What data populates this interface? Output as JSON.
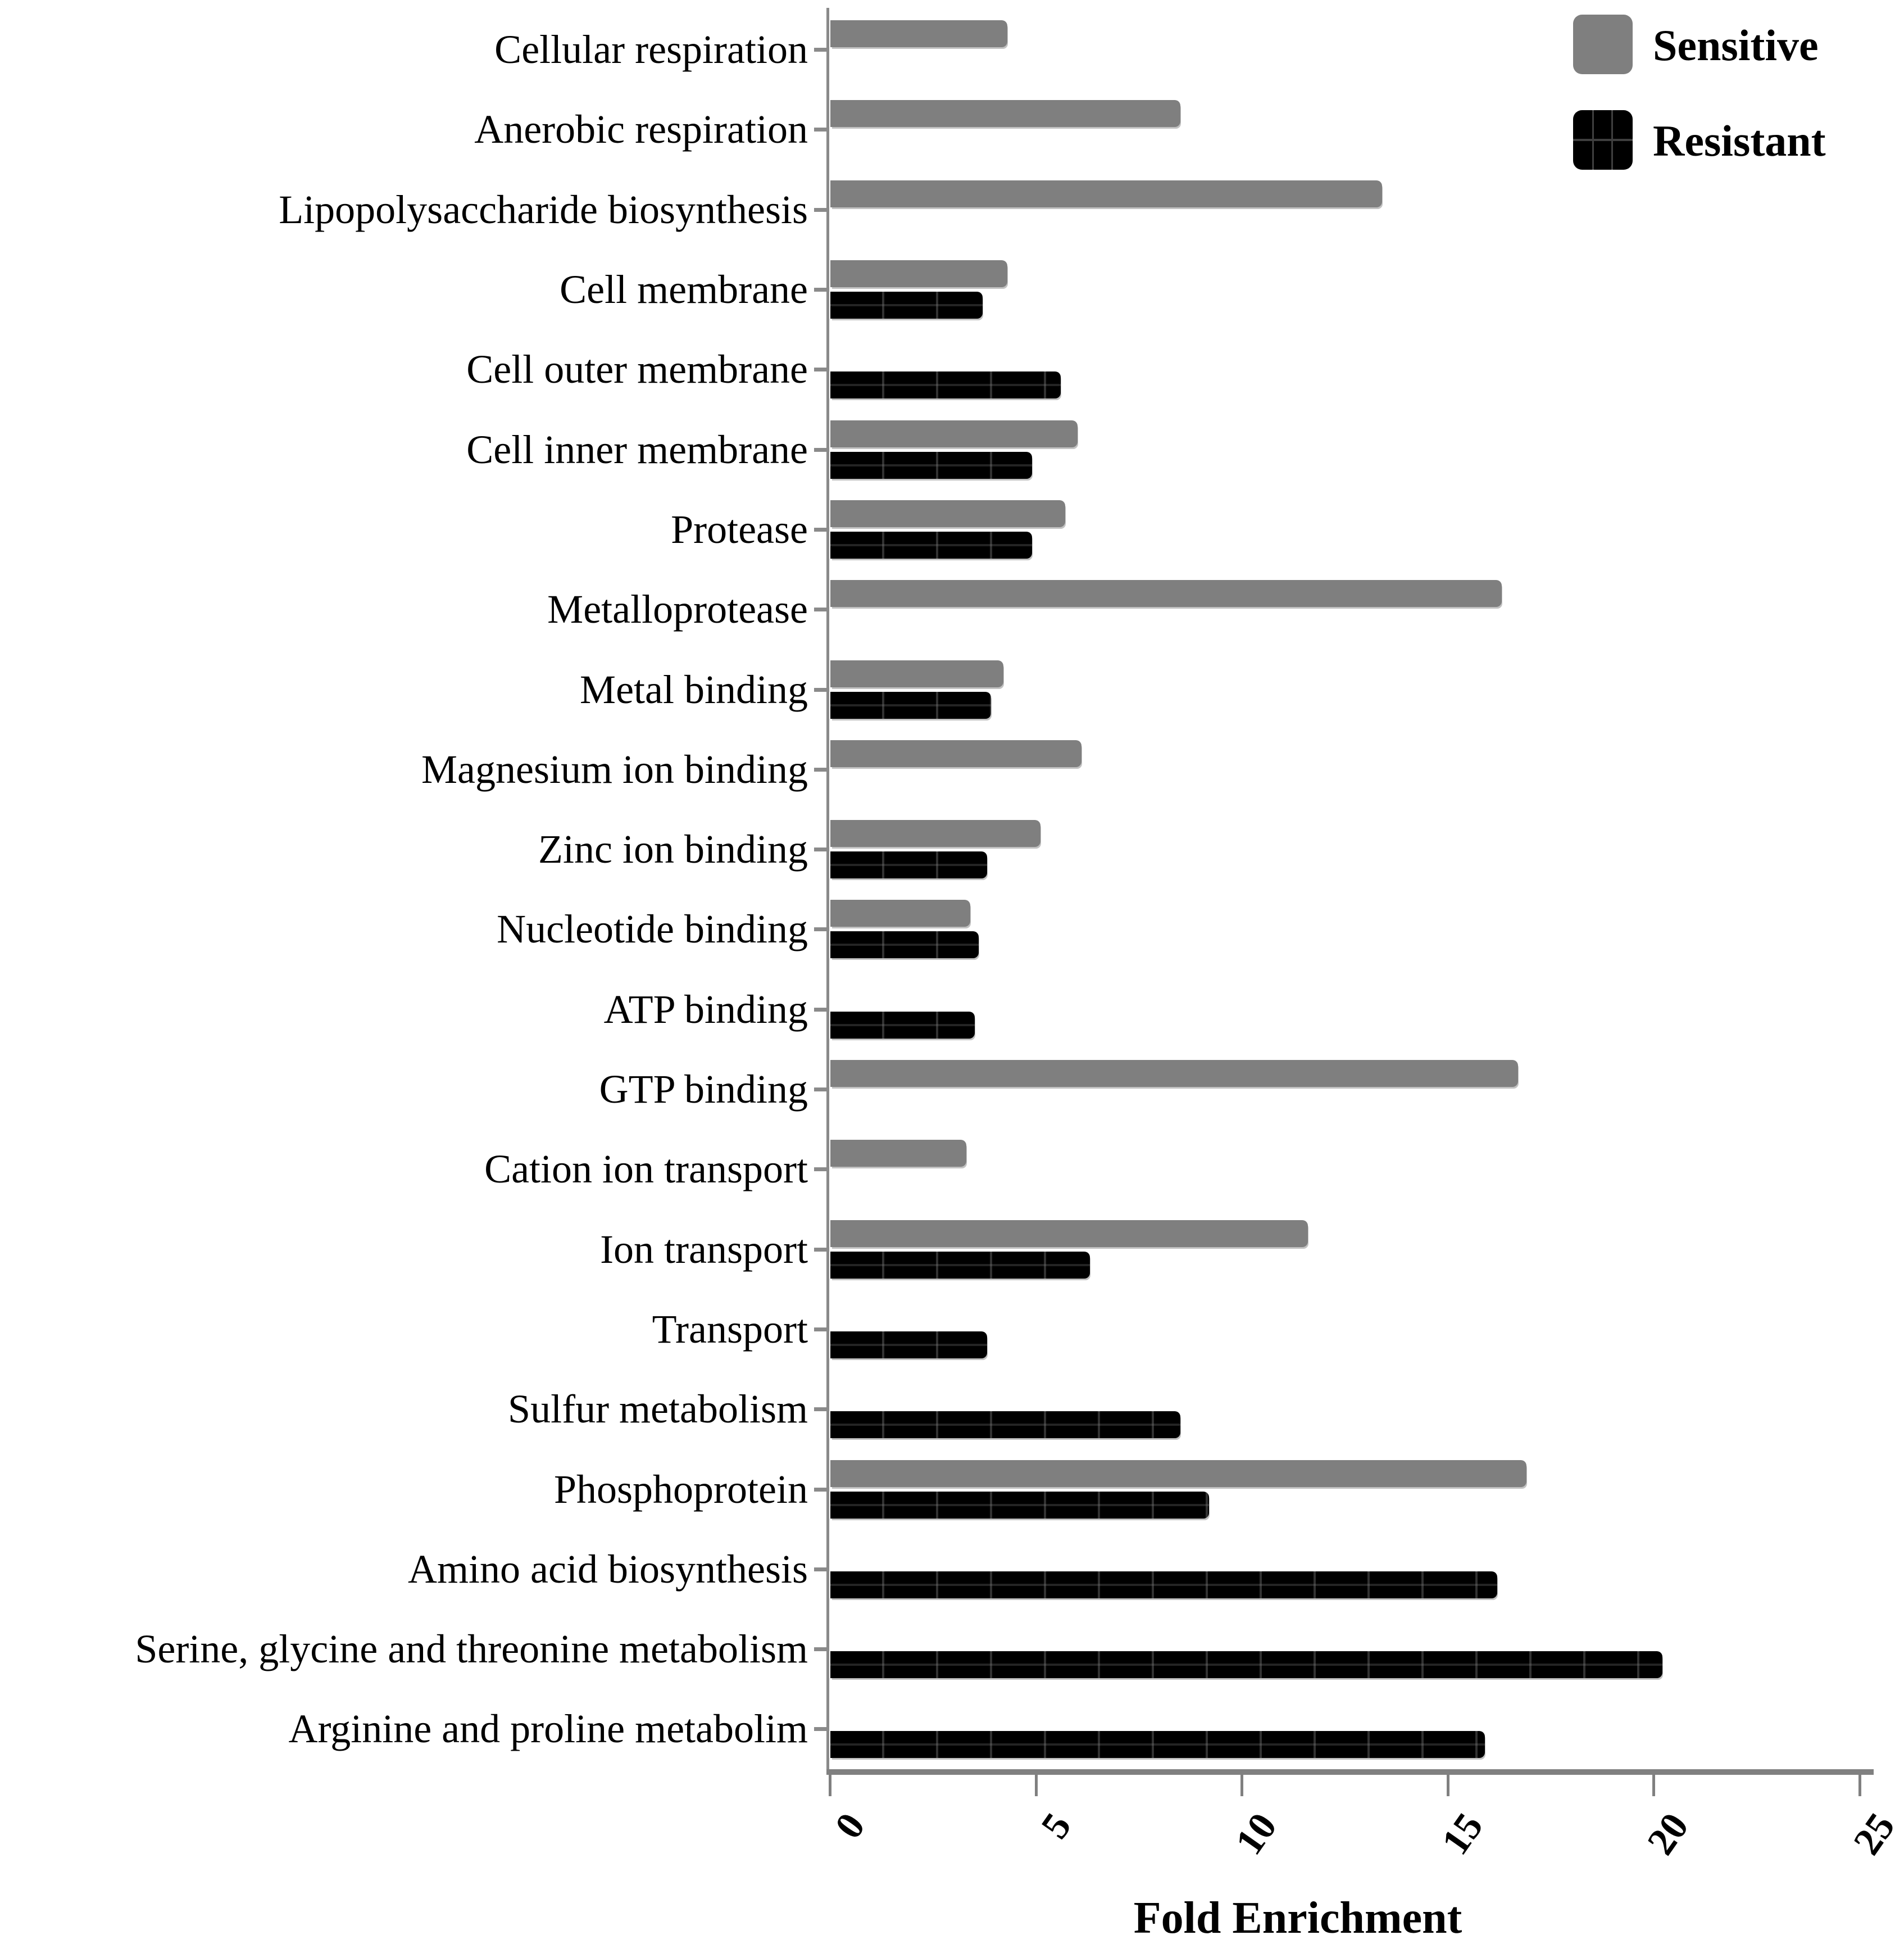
{
  "legend": {
    "items": [
      {
        "label": "Sensitive",
        "color": "#7f7f7f"
      },
      {
        "label": "Resistant",
        "color": "#000000"
      }
    ]
  },
  "xaxis": {
    "title": "Fold Enrichment",
    "ticks": [
      "0",
      "5",
      "10",
      "15",
      "20",
      "25"
    ]
  },
  "chart_data": {
    "type": "bar",
    "orientation": "horizontal",
    "title": "",
    "xlabel": "Fold Enrichment",
    "ylabel": "",
    "xlim": [
      0,
      25
    ],
    "grid": false,
    "legend_position": "top-right",
    "categories": [
      "Cellular respiration",
      "Anerobic respiration",
      "Lipopolysaccharide biosynthesis",
      "Cell membrane",
      "Cell outer membrane",
      "Cell inner membrane",
      "Protease",
      "Metalloprotease",
      "Metal binding",
      "Magnesium ion binding",
      "Zinc ion binding",
      "Nucleotide binding",
      "ATP binding",
      "GTP binding",
      "Cation ion transport",
      "Ion transport",
      "Transport",
      "Sulfur metabolism",
      "Phosphoprotein",
      "Amino acid biosynthesis",
      "Serine, glycine and threonine metabolism",
      "Arginine and proline metabolim"
    ],
    "series": [
      {
        "name": "Sensitive",
        "color": "#7f7f7f",
        "values": [
          4.3,
          8.5,
          13.4,
          4.3,
          null,
          6.0,
          5.7,
          16.3,
          4.2,
          6.1,
          5.1,
          3.4,
          null,
          16.7,
          3.3,
          11.6,
          null,
          null,
          16.9,
          null,
          null,
          null
        ]
      },
      {
        "name": "Resistant",
        "color": "#000000",
        "values": [
          null,
          null,
          null,
          3.7,
          5.6,
          4.9,
          4.9,
          null,
          3.9,
          null,
          3.8,
          3.6,
          3.5,
          null,
          null,
          6.3,
          3.8,
          8.5,
          9.2,
          16.2,
          20.2,
          15.9
        ]
      }
    ]
  }
}
